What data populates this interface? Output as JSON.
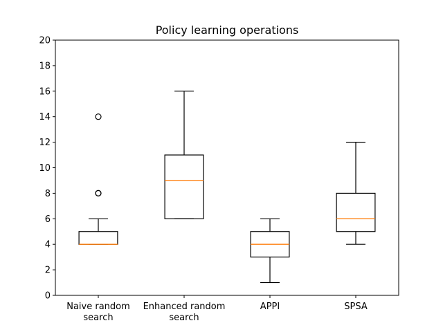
{
  "chart_data": {
    "type": "box",
    "title": "Policy learning operations",
    "xlabel": "",
    "ylabel": "",
    "ylim": [
      0,
      20
    ],
    "yticks": [
      0,
      2,
      4,
      6,
      8,
      10,
      12,
      14,
      16,
      18,
      20
    ],
    "grid": false,
    "categories": [
      [
        "Naive random",
        "search"
      ],
      [
        "Enhanced random",
        "search"
      ],
      [
        "APPI"
      ],
      [
        "SPSA"
      ]
    ],
    "boxes": [
      {
        "whisker_low": 4,
        "q1": 4,
        "median": 4,
        "q3": 5,
        "whisker_high": 6,
        "outliers": [
          8,
          8,
          14
        ]
      },
      {
        "whisker_low": 6,
        "q1": 6,
        "median": 9,
        "q3": 11,
        "whisker_high": 16,
        "outliers": []
      },
      {
        "whisker_low": 1,
        "q1": 3,
        "median": 4,
        "q3": 5,
        "whisker_high": 6,
        "outliers": []
      },
      {
        "whisker_low": 4,
        "q1": 5,
        "median": 6,
        "q3": 8,
        "whisker_high": 12,
        "outliers": []
      }
    ],
    "colors": {
      "box": "#000000",
      "median": "#ff7f0e",
      "background": "#ffffff"
    }
  }
}
